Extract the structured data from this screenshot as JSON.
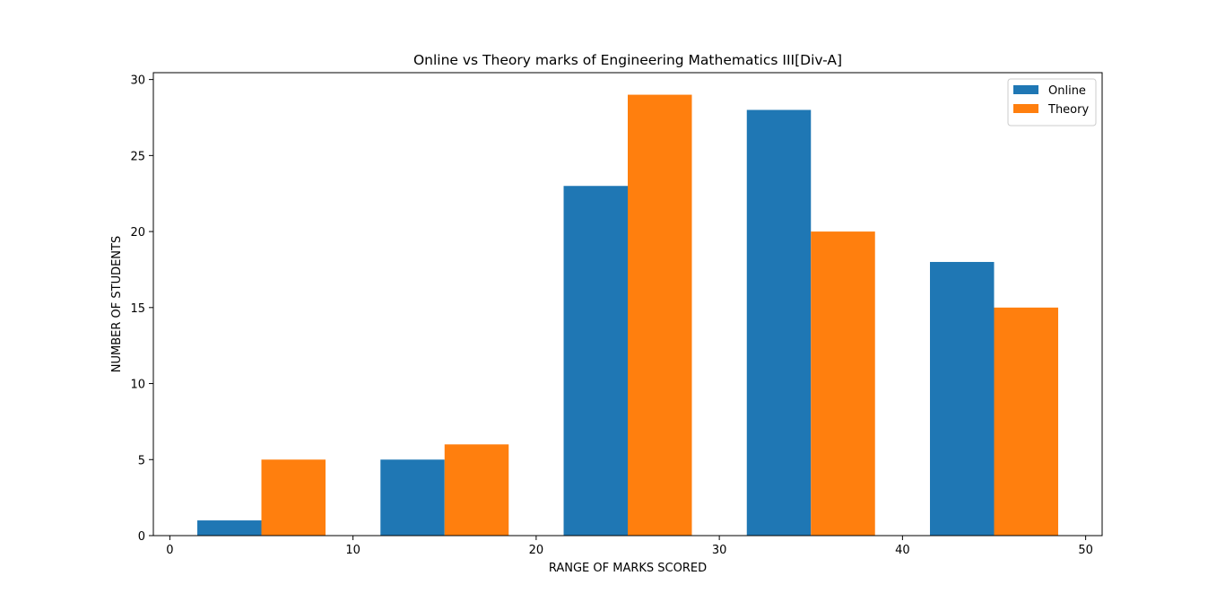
{
  "chart_data": {
    "type": "bar",
    "title": "Online vs Theory marks of Engineering Mathematics III[Div-A]",
    "xlabel": "RANGE OF MARKS SCORED",
    "ylabel": "NUMBER OF STUDENTS",
    "xlim": [
      -0.9,
      50.9
    ],
    "ylim": [
      0,
      30.45
    ],
    "x_ticks": [
      0,
      10,
      20,
      30,
      40,
      50
    ],
    "y_ticks": [
      0,
      5,
      10,
      15,
      20,
      25,
      30
    ],
    "bar_width": 3.5,
    "grid": false,
    "legend_position": "top-right",
    "series": [
      {
        "name": "Online",
        "color": "#1f77b4",
        "x_centers": [
          3.25,
          13.25,
          23.25,
          33.25,
          43.25
        ],
        "values": [
          1,
          5,
          23,
          28,
          18
        ]
      },
      {
        "name": "Theory",
        "color": "#ff7f0e",
        "x_centers": [
          6.75,
          16.75,
          26.75,
          36.75,
          46.75
        ],
        "values": [
          5,
          6,
          29,
          20,
          15
        ]
      }
    ]
  }
}
